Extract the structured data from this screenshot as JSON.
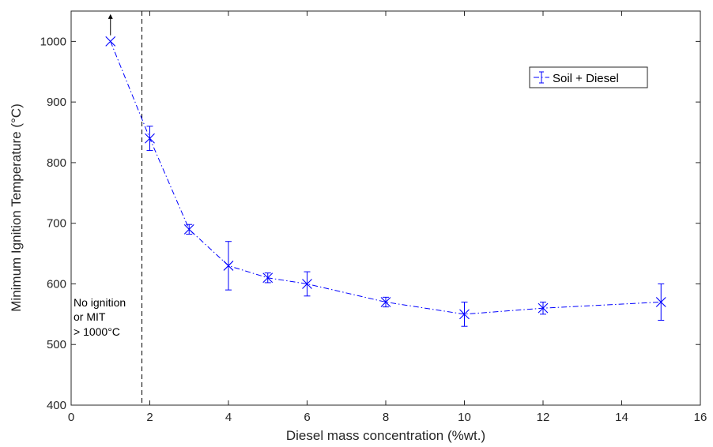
{
  "chart_data": {
    "type": "line",
    "xlabel": "Diesel mass concentration (%wt.)",
    "ylabel": "Minimum Ignition Temperature (°C)",
    "xlim": [
      0,
      16
    ],
    "ylim": [
      400,
      1050
    ],
    "xticks": [
      0,
      2,
      4,
      6,
      8,
      10,
      12,
      14,
      16
    ],
    "yticks": [
      400,
      500,
      600,
      700,
      800,
      900,
      1000
    ],
    "grid": false,
    "legend_position": "top-right",
    "series": [
      {
        "name": "Soil + Diesel",
        "color": "#0000ff",
        "line_style": "dash-dot",
        "marker": "x",
        "x": [
          1,
          2,
          3,
          4,
          5,
          6,
          8,
          10,
          12,
          15
        ],
        "y": [
          1000,
          840,
          690,
          630,
          610,
          600,
          570,
          550,
          560,
          570
        ],
        "err": [
          0,
          20,
          8,
          40,
          8,
          20,
          8,
          20,
          10,
          30
        ]
      }
    ],
    "threshold_line": {
      "x": 1.8,
      "style": "dashed",
      "color": "#000000"
    },
    "arrow": {
      "x": 1,
      "from_y": 1010,
      "to_y": 1045
    },
    "annotation_lines": [
      "No ignition",
      "or MIT",
      "> 1000°C"
    ]
  }
}
